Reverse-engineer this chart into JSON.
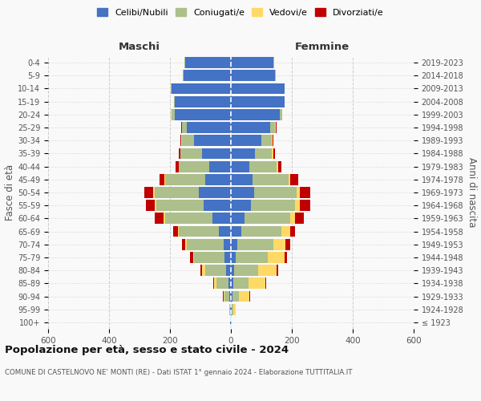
{
  "age_groups": [
    "100+",
    "95-99",
    "90-94",
    "85-89",
    "80-84",
    "75-79",
    "70-74",
    "65-69",
    "60-64",
    "55-59",
    "50-54",
    "45-49",
    "40-44",
    "35-39",
    "30-34",
    "25-29",
    "20-24",
    "15-19",
    "10-14",
    "5-9",
    "0-4"
  ],
  "birth_years": [
    "≤ 1923",
    "1924-1928",
    "1929-1933",
    "1934-1938",
    "1939-1943",
    "1944-1948",
    "1949-1953",
    "1954-1958",
    "1959-1963",
    "1964-1968",
    "1969-1973",
    "1974-1978",
    "1979-1983",
    "1984-1988",
    "1989-1993",
    "1994-1998",
    "1999-2003",
    "2004-2008",
    "2009-2013",
    "2014-2018",
    "2019-2023"
  ],
  "male": {
    "celibi": [
      2,
      2,
      5,
      8,
      15,
      20,
      25,
      40,
      60,
      90,
      105,
      85,
      70,
      95,
      120,
      145,
      185,
      185,
      195,
      155,
      150
    ],
    "coniugati": [
      1,
      3,
      15,
      40,
      70,
      100,
      120,
      130,
      155,
      155,
      145,
      130,
      100,
      70,
      40,
      15,
      10,
      2,
      2,
      2,
      2
    ],
    "vedovi": [
      0,
      0,
      5,
      8,
      10,
      5,
      5,
      5,
      5,
      5,
      5,
      3,
      2,
      2,
      2,
      0,
      3,
      0,
      0,
      0,
      0
    ],
    "divorziati": [
      0,
      0,
      2,
      2,
      5,
      10,
      10,
      15,
      30,
      30,
      30,
      15,
      10,
      5,
      3,
      2,
      0,
      0,
      0,
      0,
      0
    ]
  },
  "female": {
    "nubili": [
      1,
      2,
      5,
      8,
      10,
      15,
      20,
      35,
      45,
      65,
      75,
      70,
      60,
      80,
      100,
      130,
      160,
      175,
      175,
      145,
      140
    ],
    "coniugate": [
      1,
      5,
      20,
      50,
      80,
      105,
      120,
      130,
      150,
      145,
      140,
      120,
      90,
      55,
      35,
      15,
      8,
      2,
      2,
      2,
      2
    ],
    "vedove": [
      1,
      10,
      35,
      55,
      60,
      55,
      40,
      30,
      15,
      15,
      10,
      5,
      5,
      5,
      2,
      2,
      0,
      0,
      0,
      0,
      0
    ],
    "divorziate": [
      0,
      0,
      2,
      2,
      5,
      10,
      15,
      15,
      30,
      35,
      35,
      25,
      10,
      5,
      3,
      2,
      0,
      0,
      0,
      0,
      0
    ]
  },
  "colors": {
    "celibi": "#4472C4",
    "coniugati": "#ADBF8B",
    "vedovi": "#FFD966",
    "divorziati": "#C00000"
  },
  "xlim": 600,
  "title": "Popolazione per età, sesso e stato civile - 2024",
  "subtitle": "COMUNE DI CASTELNOVO NE' MONTI (RE) - Dati ISTAT 1° gennaio 2024 - Elaborazione TUTTITALIA.IT",
  "ylabel_left": "Fasce di età",
  "ylabel_right": "Anni di nascita",
  "xlabel_maschi": "Maschi",
  "xlabel_femmine": "Femmine",
  "legend_labels": [
    "Celibi/Nubili",
    "Coniugati/e",
    "Vedovi/e",
    "Divorziati/e"
  ]
}
